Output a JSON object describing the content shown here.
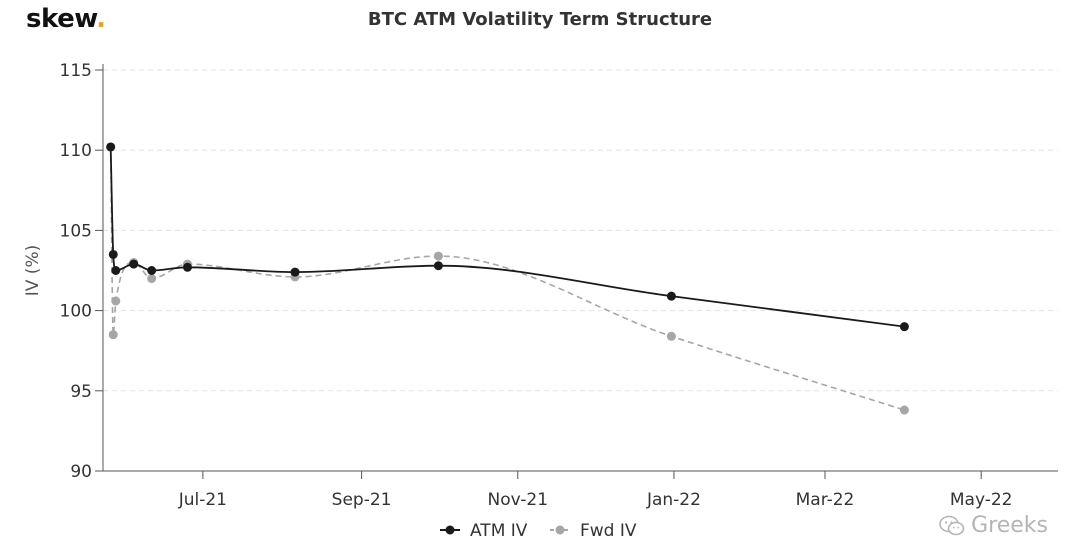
{
  "brand": {
    "name": "skew",
    "dot": "."
  },
  "watermark": {
    "text": "Greeks",
    "icon": "wechat-icon"
  },
  "chart_data": {
    "type": "line",
    "title": "BTC ATM Volatility Term Structure",
    "xlabel": "",
    "ylabel": "IV (%)",
    "ylim": [
      90,
      115
    ],
    "yticks": [
      90,
      95,
      100,
      105,
      110,
      115
    ],
    "xlim": [
      "2021-05-23",
      "2022-05-31"
    ],
    "xticks": [
      {
        "date": "2021-07-01",
        "label": "Jul-21"
      },
      {
        "date": "2021-09-01",
        "label": "Sep-21"
      },
      {
        "date": "2021-11-01",
        "label": "Nov-21"
      },
      {
        "date": "2022-01-01",
        "label": "Jan-22"
      },
      {
        "date": "2022-03-01",
        "label": "Mar-22"
      },
      {
        "date": "2022-05-01",
        "label": "May-22"
      }
    ],
    "grid": "horizontal",
    "legend": "bottom-center",
    "series": [
      {
        "name": "ATM IV",
        "color": "#1a1a1a",
        "style": "solid",
        "points": [
          {
            "x": "2021-05-26",
            "y": 110.2
          },
          {
            "x": "2021-05-27",
            "y": 103.5
          },
          {
            "x": "2021-05-28",
            "y": 102.5
          },
          {
            "x": "2021-06-04",
            "y": 102.9
          },
          {
            "x": "2021-06-11",
            "y": 102.5
          },
          {
            "x": "2021-06-25",
            "y": 102.7
          },
          {
            "x": "2021-08-06",
            "y": 102.4
          },
          {
            "x": "2021-10-01",
            "y": 102.8
          },
          {
            "x": "2021-12-31",
            "y": 100.9
          },
          {
            "x": "2022-04-01",
            "y": 99.0
          }
        ]
      },
      {
        "name": "Fwd IV",
        "color": "#a6a6a6",
        "style": "dashed",
        "points": [
          {
            "x": "2021-05-26",
            "y": 110.2
          },
          {
            "x": "2021-05-27",
            "y": 98.5
          },
          {
            "x": "2021-05-28",
            "y": 100.6
          },
          {
            "x": "2021-06-04",
            "y": 103.0
          },
          {
            "x": "2021-06-11",
            "y": 102.0
          },
          {
            "x": "2021-06-25",
            "y": 102.9
          },
          {
            "x": "2021-08-06",
            "y": 102.1
          },
          {
            "x": "2021-10-01",
            "y": 103.4
          },
          {
            "x": "2021-12-31",
            "y": 98.4
          },
          {
            "x": "2022-04-01",
            "y": 93.8
          }
        ]
      }
    ]
  }
}
